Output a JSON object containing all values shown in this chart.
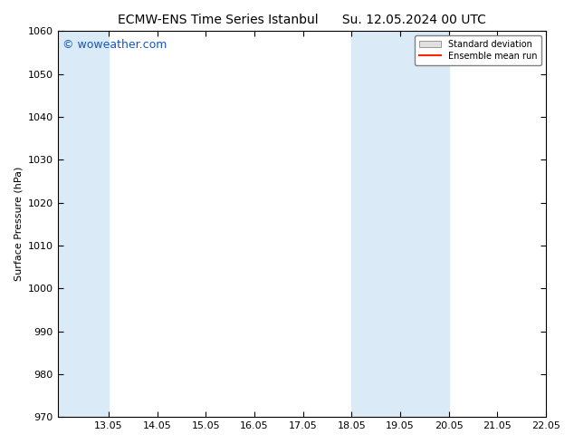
{
  "title_left": "ECMW-ENS Time Series Istanbul",
  "title_right": "Su. 12.05.2024 00 UTC",
  "ylabel": "Surface Pressure (hPa)",
  "ylim": [
    970,
    1060
  ],
  "yticks": [
    970,
    980,
    990,
    1000,
    1010,
    1020,
    1030,
    1040,
    1050,
    1060
  ],
  "xlim": [
    12.0,
    22.05
  ],
  "xtick_positions": [
    13.05,
    14.05,
    15.05,
    16.05,
    17.05,
    18.05,
    19.05,
    20.05,
    21.05,
    22.05
  ],
  "xtick_labels": [
    "13.05",
    "14.05",
    "15.05",
    "16.05",
    "17.05",
    "18.05",
    "19.05",
    "20.05",
    "21.05",
    "22.05"
  ],
  "shade_bands": [
    {
      "start": 12.0,
      "end": 13.05,
      "color": "#daeaf6"
    },
    {
      "start": 18.05,
      "end": 20.05,
      "color": "#daeaf6"
    }
  ],
  "bg_color": "#ffffff",
  "plot_bg_color": "#ffffff",
  "watermark": "© woweather.com",
  "watermark_color": "#1155cc",
  "legend_std_color": "#e0e0e0",
  "legend_std_edge": "#999999",
  "legend_mean_color": "#ff2200",
  "title_fontsize": 10,
  "ylabel_fontsize": 8,
  "tick_fontsize": 8,
  "legend_fontsize": 7,
  "watermark_fontsize": 9
}
